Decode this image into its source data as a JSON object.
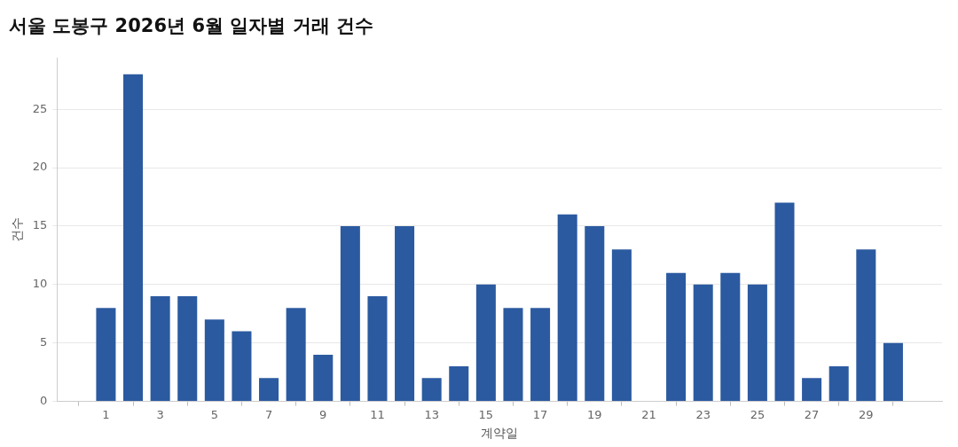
{
  "chart_data": {
    "type": "bar",
    "title": "서울 도봉구 2026년 6월 일자별 거래 건수",
    "xlabel": "계약일",
    "ylabel": "건수",
    "x": [
      1,
      2,
      3,
      4,
      5,
      6,
      7,
      8,
      9,
      10,
      11,
      12,
      13,
      14,
      15,
      16,
      17,
      18,
      19,
      20,
      22,
      23,
      24,
      25,
      26,
      27,
      28,
      29,
      30
    ],
    "values": [
      8,
      28,
      9,
      9,
      7,
      6,
      2,
      8,
      4,
      15,
      9,
      15,
      2,
      3,
      10,
      8,
      8,
      16,
      15,
      13,
      11,
      10,
      11,
      10,
      17,
      2,
      3,
      13,
      5
    ],
    "color": "#2b5aa0",
    "xlim": [
      -0.8,
      31.8
    ],
    "xticks": [
      1,
      3,
      5,
      7,
      9,
      11,
      13,
      15,
      17,
      19,
      21,
      23,
      25,
      27,
      29
    ],
    "ylim": [
      0,
      29.4
    ],
    "yticks": [
      0,
      5,
      10,
      15,
      20,
      25
    ],
    "grid": "y"
  }
}
